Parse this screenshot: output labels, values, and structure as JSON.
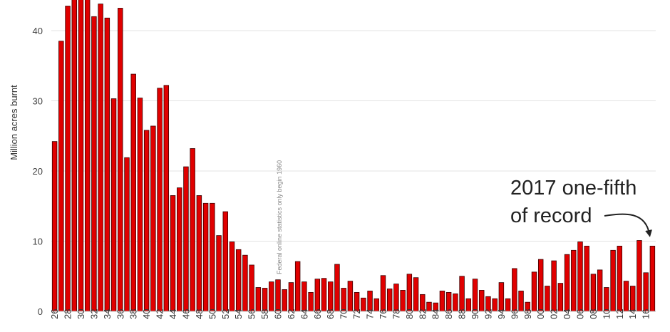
{
  "chart_data": {
    "type": "bar",
    "title": "",
    "xlabel": "",
    "ylabel": "Million acres burnt",
    "ylim": [
      0,
      45
    ],
    "yticks": [
      0,
      10,
      20,
      30,
      40
    ],
    "grid": "horizontal",
    "bar_color": "#e00000",
    "bar_edge_color": "#3a0000",
    "x": [
      1926,
      1927,
      1928,
      1929,
      1930,
      1931,
      1932,
      1933,
      1934,
      1935,
      1936,
      1937,
      1938,
      1939,
      1940,
      1941,
      1942,
      1943,
      1944,
      1945,
      1946,
      1947,
      1948,
      1949,
      1950,
      1951,
      1952,
      1953,
      1954,
      1955,
      1956,
      1957,
      1958,
      1959,
      1960,
      1961,
      1962,
      1963,
      1964,
      1965,
      1966,
      1967,
      1968,
      1969,
      1970,
      1971,
      1972,
      1973,
      1974,
      1975,
      1976,
      1977,
      1978,
      1979,
      1980,
      1981,
      1982,
      1983,
      1984,
      1985,
      1986,
      1987,
      1988,
      1989,
      1990,
      1991,
      1992,
      1993,
      1994,
      1995,
      1996,
      1997,
      1998,
      1999,
      2000,
      2001,
      2002,
      2003,
      2004,
      2005,
      2006,
      2007,
      2008,
      2009,
      2010,
      2011,
      2012,
      2013,
      2014,
      2015,
      2016,
      2017
    ],
    "values": [
      24.2,
      38.5,
      43.5,
      44.8,
      45.0,
      44.8,
      42.0,
      43.8,
      41.8,
      30.3,
      43.2,
      21.9,
      33.8,
      30.4,
      25.8,
      26.4,
      31.8,
      32.2,
      16.5,
      17.6,
      20.6,
      23.2,
      16.5,
      15.4,
      15.4,
      10.8,
      14.2,
      9.9,
      8.8,
      8.0,
      6.6,
      3.4,
      3.3,
      4.2,
      4.5,
      3.1,
      4.1,
      7.1,
      4.2,
      2.7,
      4.6,
      4.7,
      4.2,
      6.7,
      3.3,
      4.3,
      2.7,
      1.9,
      2.9,
      1.8,
      5.1,
      3.2,
      3.9,
      3.0,
      5.3,
      4.8,
      2.4,
      1.3,
      1.2,
      2.9,
      2.7,
      2.5,
      5.0,
      1.8,
      4.6,
      3.0,
      2.1,
      1.8,
      4.1,
      1.8,
      6.1,
      2.9,
      1.3,
      5.6,
      7.4,
      3.6,
      7.2,
      4.0,
      8.1,
      8.7,
      9.9,
      9.3,
      5.3,
      5.9,
      3.4,
      8.7,
      9.3,
      4.3,
      3.6,
      10.1,
      5.5,
      9.3
    ],
    "xtick_labels": [
      "26",
      "28",
      "30",
      "32",
      "34",
      "36",
      "38",
      "40",
      "42",
      "44",
      "46",
      "48",
      "50",
      "52",
      "54",
      "56",
      "58",
      "60",
      "62",
      "64",
      "66",
      "68",
      "70",
      "72",
      "74",
      "76",
      "78",
      "80",
      "82",
      "84",
      "86",
      "88",
      "90",
      "92",
      "94",
      "96",
      "98",
      "00",
      "02",
      "04",
      "06",
      "08",
      "10",
      "12",
      "14",
      "16"
    ],
    "annotations": {
      "vertical_note": "Federal online statistics only begin 1960",
      "callout_line1": "2017 one-fifth",
      "callout_line2": "of record"
    }
  }
}
